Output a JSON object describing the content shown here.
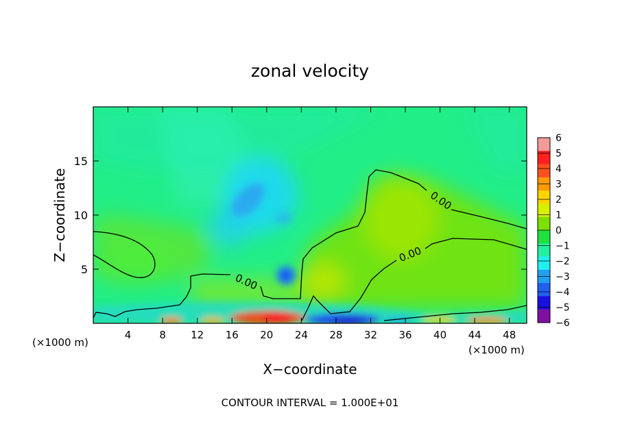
{
  "chart_data": {
    "type": "heatmap",
    "title": "zonal velocity",
    "xlabel": "X−coordinate",
    "ylabel": "Z−coordinate",
    "x_units_left": "(×1000 m)",
    "x_units_right": "(×1000 m)",
    "footer": "CONTOUR INTERVAL = 1.000E+01",
    "xlim": [
      0,
      50
    ],
    "ylim": [
      0,
      20
    ],
    "x_ticks": [
      {
        "value": 4,
        "label": "4"
      },
      {
        "value": 8,
        "label": "8"
      },
      {
        "value": 12,
        "label": "12"
      },
      {
        "value": 16,
        "label": "16"
      },
      {
        "value": 20,
        "label": "20"
      },
      {
        "value": 24,
        "label": "24"
      },
      {
        "value": 28,
        "label": "28"
      },
      {
        "value": 32,
        "label": "32"
      },
      {
        "value": 36,
        "label": "36"
      },
      {
        "value": 40,
        "label": "40"
      },
      {
        "value": 44,
        "label": "44"
      },
      {
        "value": 48,
        "label": "48"
      }
    ],
    "y_ticks": [
      {
        "value": 5,
        "label": "5"
      },
      {
        "value": 10,
        "label": "10"
      },
      {
        "value": 15,
        "label": "15"
      }
    ],
    "colorbar": {
      "levels": [
        {
          "value": 6,
          "label": "6"
        },
        {
          "value": 5,
          "label": "5"
        },
        {
          "value": 4,
          "label": "4"
        },
        {
          "value": 3,
          "label": "3"
        },
        {
          "value": 2,
          "label": "2"
        },
        {
          "value": 1,
          "label": "1"
        },
        {
          "value": 0,
          "label": "0"
        },
        {
          "value": -1,
          "label": "−1"
        },
        {
          "value": -2,
          "label": "−2"
        },
        {
          "value": -3,
          "label": "−3"
        },
        {
          "value": -4,
          "label": "−4"
        },
        {
          "value": -5,
          "label": "−5"
        },
        {
          "value": -6,
          "label": "−6"
        }
      ],
      "colors": [
        "#f39a9a",
        "#ff2020",
        "#ff5020",
        "#ff9a00",
        "#ffd400",
        "#d6f000",
        "#7ce000",
        "#20e040",
        "#20f0a0",
        "#20f0f0",
        "#20a0f0",
        "#2060f0",
        "#1a10e0",
        "#8010a0"
      ]
    },
    "contour_labels": [
      {
        "label": "0.00",
        "x": 18.2,
        "y": 3.5
      },
      {
        "label": "0.00",
        "x": 37.0,
        "y": 6.4
      },
      {
        "label": "0.00",
        "x": 40.3,
        "y": 11.3
      }
    ],
    "features": [
      {
        "name": "upper negative jet core",
        "x": 18.5,
        "y": 11.5,
        "value": -2.6
      },
      {
        "name": "low-level negative cell",
        "x": 22.2,
        "y": 4.3,
        "value": -3.0
      },
      {
        "name": "surface positive maximum",
        "x": 21.5,
        "y": 0.3,
        "value": 5.5
      },
      {
        "name": "surface negative minimum",
        "x": 29.5,
        "y": 0.3,
        "value": -5.5
      },
      {
        "name": "positive region aloft",
        "x": 35,
        "y": 10,
        "value": 1.2
      }
    ]
  }
}
